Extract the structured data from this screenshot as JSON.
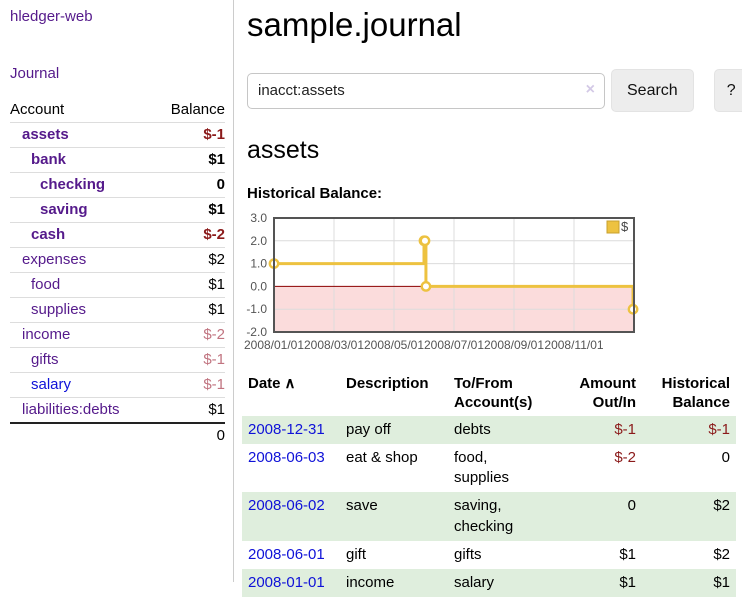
{
  "app": {
    "title": "hledger-web",
    "journal_nav": "Journal"
  },
  "sidebar": {
    "col_account": "Account",
    "col_balance": "Balance",
    "accounts": [
      {
        "name": "assets",
        "depth": 1,
        "bold": true,
        "balance": "$-1",
        "negative": "strong"
      },
      {
        "name": "bank",
        "depth": 2,
        "bold": true,
        "balance": "$1"
      },
      {
        "name": "checking",
        "depth": 3,
        "bold": true,
        "balance": "0"
      },
      {
        "name": "saving",
        "depth": 3,
        "bold": true,
        "balance": "$1"
      },
      {
        "name": "cash",
        "depth": 2,
        "bold": true,
        "balance": "$-2",
        "negative": "strong"
      },
      {
        "name": "expenses",
        "depth": 1,
        "bold": false,
        "balance": "$2"
      },
      {
        "name": "food",
        "depth": 2,
        "bold": false,
        "balance": "$1"
      },
      {
        "name": "supplies",
        "depth": 2,
        "bold": false,
        "balance": "$1"
      },
      {
        "name": "income",
        "depth": 1,
        "bold": false,
        "balance": "$-2",
        "negative": "light"
      },
      {
        "name": "gifts",
        "depth": 2,
        "bold": false,
        "balance": "$-1",
        "negative": "light"
      },
      {
        "name": "salary",
        "depth": 2,
        "bold": false,
        "balance": "$-1",
        "negative": "light",
        "link_style": "blue"
      },
      {
        "name": "liabilities:debts",
        "depth": 1,
        "bold": false,
        "balance": "$1"
      }
    ],
    "total": "0"
  },
  "header": {
    "title": "sample.journal"
  },
  "search": {
    "value": "inacct:assets",
    "clear_icon": "×",
    "button_label": "Search",
    "help_label": "?"
  },
  "account_page": {
    "heading": "assets",
    "chart_label": "Historical Balance:"
  },
  "chart_data": {
    "type": "line",
    "style": "step",
    "title": "Historical Balance",
    "legend": "$",
    "legend_position": "top-right",
    "series": [
      {
        "name": "$",
        "color": "#edc240",
        "points": [
          [
            "2008-01-01",
            1
          ],
          [
            "2008-06-01",
            2
          ],
          [
            "2008-06-02",
            2
          ],
          [
            "2008-06-03",
            0
          ],
          [
            "2008-12-31",
            -1
          ]
        ]
      }
    ],
    "x_ticks": [
      "2008/01/01",
      "2008/03/01",
      "2008/05/01",
      "2008/07/01",
      "2008/09/01",
      "2008/11/01"
    ],
    "x_range_months": 12,
    "y_ticks": [
      3.0,
      2.0,
      1.0,
      0.0,
      -1.0,
      -2.0
    ],
    "ylim": [
      -2,
      3
    ],
    "grid": true,
    "grid_color": "#dcdcdc",
    "border_color": "#545454",
    "tick_label_color": "#545454",
    "zero_line_color": "#8b0000",
    "negative_region_color": "#fbdcdc"
  },
  "register": {
    "col_date": "Date",
    "sort_icon": "∧",
    "col_description": "Description",
    "col_accounts": "To/From Account(s)",
    "col_amount": "Amount Out/In",
    "col_balance": "Historical Balance",
    "rows": [
      {
        "date": "2008-12-31",
        "description": "pay off",
        "accounts": "debts",
        "amount": "$-1",
        "amount_neg": true,
        "balance": "$-1",
        "balance_neg": true
      },
      {
        "date": "2008-06-03",
        "description": "eat & shop",
        "accounts": "food, supplies",
        "amount": "$-2",
        "amount_neg": true,
        "balance": "0",
        "balance_neg": false
      },
      {
        "date": "2008-06-02",
        "description": "save",
        "accounts": "saving, checking",
        "amount": "0",
        "amount_neg": false,
        "balance": "$2",
        "balance_neg": false
      },
      {
        "date": "2008-06-01",
        "description": "gift",
        "accounts": "gifts",
        "amount": "$1",
        "amount_neg": false,
        "balance": "$2",
        "balance_neg": false
      },
      {
        "date": "2008-01-01",
        "description": "income",
        "accounts": "salary",
        "amount": "$1",
        "amount_neg": false,
        "balance": "$1",
        "balance_neg": false
      }
    ]
  }
}
